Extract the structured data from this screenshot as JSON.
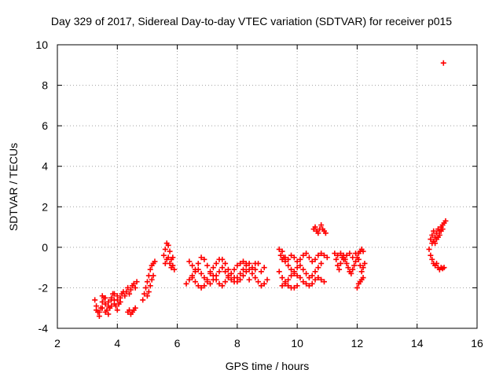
{
  "chart_data": {
    "type": "scatter",
    "title": "Day 329 of 2017, Sidereal Day-to-day VTEC variation (SDTVAR) for receiver p015",
    "xlabel": "GPS time / hours",
    "ylabel": "SDTVAR / TECUs",
    "xlim": [
      2,
      16
    ],
    "ylim": [
      -4,
      10
    ],
    "xticks": [
      2,
      4,
      6,
      8,
      10,
      12,
      14,
      16
    ],
    "yticks": [
      -4,
      -2,
      0,
      2,
      4,
      6,
      8,
      10
    ],
    "grid": true,
    "marker": "+",
    "color": "#ff0000",
    "series": [
      {
        "points": [
          [
            3.25,
            -2.6
          ],
          [
            3.3,
            -2.9
          ],
          [
            3.35,
            -3.2
          ],
          [
            3.4,
            -3.4
          ],
          [
            3.45,
            -3.0
          ],
          [
            3.5,
            -2.7
          ],
          [
            3.55,
            -2.5
          ],
          [
            3.6,
            -2.8
          ],
          [
            3.65,
            -3.1
          ],
          [
            3.7,
            -3.3
          ],
          [
            3.75,
            -3.0
          ],
          [
            3.8,
            -2.6
          ],
          [
            3.85,
            -2.3
          ],
          [
            3.9,
            -2.6
          ],
          [
            3.95,
            -2.9
          ],
          [
            4.0,
            -3.1
          ],
          [
            4.05,
            -2.8
          ],
          [
            4.1,
            -2.5
          ],
          [
            4.15,
            -2.3
          ],
          [
            4.2,
            -2.2
          ],
          [
            4.25,
            -2.4
          ],
          [
            4.3,
            -2.2
          ],
          [
            4.35,
            -2.0
          ],
          [
            4.4,
            -2.3
          ],
          [
            4.45,
            -2.1
          ],
          [
            4.5,
            -1.9
          ],
          [
            4.55,
            -1.8
          ],
          [
            4.6,
            -2.0
          ],
          [
            4.65,
            -1.7
          ],
          [
            3.3,
            -3.1
          ],
          [
            3.4,
            -3.2
          ],
          [
            3.5,
            -3.0
          ],
          [
            3.6,
            -3.2
          ],
          [
            3.7,
            -2.9
          ],
          [
            3.8,
            -2.5
          ],
          [
            3.9,
            -2.3
          ],
          [
            4.0,
            -2.6
          ],
          [
            3.5,
            -2.4
          ],
          [
            3.6,
            -2.5
          ],
          [
            3.7,
            -2.7
          ],
          [
            3.8,
            -2.9
          ],
          [
            3.9,
            -2.8
          ],
          [
            4.0,
            -2.4
          ],
          [
            4.1,
            -2.7
          ],
          [
            4.35,
            -3.2
          ],
          [
            4.4,
            -3.1
          ],
          [
            4.45,
            -3.3
          ],
          [
            4.5,
            -3.2
          ],
          [
            4.55,
            -3.1
          ],
          [
            4.6,
            -3.0
          ]
        ]
      },
      {
        "points": [
          [
            4.85,
            -2.6
          ],
          [
            4.9,
            -2.3
          ],
          [
            4.95,
            -2.0
          ],
          [
            5.0,
            -2.4
          ],
          [
            5.05,
            -2.2
          ],
          [
            5.1,
            -1.9
          ],
          [
            5.15,
            -1.6
          ],
          [
            5.2,
            -1.4
          ],
          [
            5.0,
            -1.7
          ],
          [
            5.05,
            -1.4
          ],
          [
            5.1,
            -1.1
          ],
          [
            5.15,
            -0.9
          ],
          [
            5.2,
            -0.8
          ],
          [
            5.25,
            -0.7
          ],
          [
            5.55,
            -0.4
          ],
          [
            5.6,
            -0.1
          ],
          [
            5.65,
            0.2
          ],
          [
            5.7,
            0.1
          ],
          [
            5.75,
            -0.2
          ],
          [
            5.8,
            -0.6
          ],
          [
            5.85,
            -0.9
          ],
          [
            5.9,
            -1.1
          ],
          [
            5.6,
            -0.8
          ],
          [
            5.65,
            -0.6
          ],
          [
            5.7,
            -0.5
          ],
          [
            5.75,
            -0.8
          ],
          [
            5.8,
            -1.0
          ],
          [
            5.85,
            -0.5
          ]
        ]
      },
      {
        "points": [
          [
            6.3,
            -1.8
          ],
          [
            6.4,
            -1.6
          ],
          [
            6.5,
            -1.4
          ],
          [
            6.6,
            -1.2
          ],
          [
            6.7,
            -1.1
          ],
          [
            6.8,
            -1.3
          ],
          [
            6.9,
            -1.5
          ],
          [
            7.0,
            -1.7
          ],
          [
            7.1,
            -1.8
          ],
          [
            7.2,
            -1.6
          ],
          [
            7.3,
            -1.4
          ],
          [
            7.4,
            -1.2
          ],
          [
            7.5,
            -1.0
          ],
          [
            7.6,
            -1.2
          ],
          [
            7.7,
            -1.4
          ],
          [
            7.8,
            -1.6
          ],
          [
            7.9,
            -1.7
          ],
          [
            8.0,
            -1.5
          ],
          [
            8.1,
            -1.3
          ],
          [
            8.2,
            -1.1
          ],
          [
            8.3,
            -0.9
          ],
          [
            8.4,
            -0.8
          ],
          [
            6.4,
            -0.7
          ],
          [
            6.5,
            -0.9
          ],
          [
            6.6,
            -1.1
          ],
          [
            6.7,
            -0.8
          ],
          [
            6.8,
            -0.5
          ],
          [
            6.9,
            -0.6
          ],
          [
            7.0,
            -0.9
          ],
          [
            7.1,
            -1.2
          ],
          [
            7.2,
            -1.4
          ],
          [
            7.3,
            -1.6
          ],
          [
            7.4,
            -1.8
          ],
          [
            7.5,
            -1.9
          ],
          [
            7.6,
            -1.7
          ],
          [
            7.7,
            -1.5
          ],
          [
            7.8,
            -1.3
          ],
          [
            7.9,
            -1.1
          ],
          [
            8.0,
            -0.9
          ],
          [
            8.1,
            -0.8
          ],
          [
            8.2,
            -0.7
          ],
          [
            8.3,
            -0.8
          ],
          [
            6.5,
            -1.5
          ],
          [
            6.6,
            -1.7
          ],
          [
            6.7,
            -1.9
          ],
          [
            6.8,
            -2.0
          ],
          [
            6.9,
            -1.9
          ],
          [
            7.0,
            -1.6
          ],
          [
            7.1,
            -1.3
          ],
          [
            7.2,
            -1.0
          ],
          [
            7.3,
            -0.8
          ],
          [
            7.4,
            -0.6
          ],
          [
            7.5,
            -0.6
          ],
          [
            7.6,
            -0.8
          ],
          [
            7.7,
            -1.1
          ],
          [
            7.8,
            -1.3
          ],
          [
            7.9,
            -1.5
          ],
          [
            8.0,
            -1.7
          ],
          [
            8.1,
            -1.6
          ],
          [
            8.2,
            -1.4
          ],
          [
            8.3,
            -1.2
          ],
          [
            8.4,
            -1.1
          ],
          [
            8.5,
            -1.0
          ],
          [
            8.6,
            -0.8
          ],
          [
            8.7,
            -0.8
          ],
          [
            8.5,
            -1.3
          ],
          [
            8.6,
            -1.5
          ],
          [
            8.7,
            -1.7
          ],
          [
            8.8,
            -1.9
          ],
          [
            8.9,
            -1.8
          ],
          [
            9.0,
            -1.6
          ],
          [
            8.4,
            -1.6
          ],
          [
            8.6,
            -1.1
          ],
          [
            8.8,
            -1.2
          ],
          [
            8.9,
            -1.0
          ]
        ]
      },
      {
        "points": [
          [
            9.4,
            -0.1
          ],
          [
            9.45,
            -0.4
          ],
          [
            9.5,
            -0.2
          ],
          [
            9.55,
            -0.5
          ],
          [
            9.6,
            -0.7
          ],
          [
            9.7,
            -0.9
          ],
          [
            9.8,
            -1.1
          ],
          [
            9.9,
            -1.3
          ],
          [
            10.0,
            -1.4
          ],
          [
            10.1,
            -1.5
          ],
          [
            10.2,
            -1.7
          ],
          [
            10.3,
            -1.8
          ],
          [
            10.4,
            -1.9
          ],
          [
            10.5,
            -1.8
          ],
          [
            10.6,
            -1.6
          ],
          [
            10.7,
            -1.5
          ],
          [
            10.8,
            -1.6
          ],
          [
            10.9,
            -1.7
          ],
          [
            9.5,
            -0.6
          ],
          [
            9.6,
            -0.5
          ],
          [
            9.7,
            -0.6
          ],
          [
            9.8,
            -0.4
          ],
          [
            9.9,
            -0.5
          ],
          [
            10.0,
            -0.7
          ],
          [
            10.1,
            -0.6
          ],
          [
            10.2,
            -0.4
          ],
          [
            10.3,
            -0.3
          ],
          [
            10.4,
            -0.5
          ],
          [
            10.5,
            -0.7
          ],
          [
            10.6,
            -0.6
          ],
          [
            10.7,
            -0.4
          ],
          [
            10.8,
            -0.3
          ],
          [
            10.9,
            -0.4
          ],
          [
            11.0,
            -0.5
          ],
          [
            9.4,
            -1.2
          ],
          [
            9.5,
            -1.5
          ],
          [
            9.6,
            -1.7
          ],
          [
            9.7,
            -1.6
          ],
          [
            9.8,
            -1.4
          ],
          [
            9.9,
            -1.2
          ],
          [
            10.0,
            -1.0
          ],
          [
            10.1,
            -0.9
          ],
          [
            10.2,
            -1.1
          ],
          [
            10.3,
            -1.3
          ],
          [
            10.4,
            -1.5
          ],
          [
            10.5,
            -1.4
          ],
          [
            10.6,
            -1.2
          ],
          [
            10.7,
            -1.0
          ],
          [
            10.8,
            -0.8
          ],
          [
            9.5,
            -1.9
          ],
          [
            9.6,
            -1.8
          ],
          [
            9.7,
            -1.9
          ],
          [
            9.8,
            -2.0
          ],
          [
            9.9,
            -2.0
          ],
          [
            10.0,
            -1.9
          ],
          [
            10.55,
            0.9
          ],
          [
            10.6,
            1.0
          ],
          [
            10.65,
            0.8
          ],
          [
            10.7,
            0.7
          ],
          [
            10.75,
            0.9
          ],
          [
            10.8,
            1.1
          ],
          [
            10.85,
            0.9
          ],
          [
            10.9,
            0.8
          ],
          [
            10.95,
            0.7
          ]
        ]
      },
      {
        "points": [
          [
            11.25,
            -0.3
          ],
          [
            11.3,
            -0.6
          ],
          [
            11.35,
            -0.9
          ],
          [
            11.4,
            -1.1
          ],
          [
            11.45,
            -0.8
          ],
          [
            11.5,
            -0.5
          ],
          [
            11.55,
            -0.4
          ],
          [
            11.6,
            -0.6
          ],
          [
            11.65,
            -0.8
          ],
          [
            11.7,
            -1.0
          ],
          [
            11.75,
            -1.2
          ],
          [
            11.8,
            -1.3
          ],
          [
            11.85,
            -1.1
          ],
          [
            11.9,
            -0.9
          ],
          [
            11.95,
            -0.7
          ],
          [
            12.0,
            -0.5
          ],
          [
            12.05,
            -0.3
          ],
          [
            12.1,
            -0.2
          ],
          [
            12.15,
            -0.1
          ],
          [
            12.2,
            -0.2
          ],
          [
            11.35,
            -0.4
          ],
          [
            11.45,
            -0.3
          ],
          [
            11.55,
            -0.6
          ],
          [
            11.65,
            -0.4
          ],
          [
            11.75,
            -0.3
          ],
          [
            11.85,
            -0.5
          ],
          [
            11.95,
            -0.3
          ],
          [
            12.05,
            -0.6
          ],
          [
            12.1,
            -0.9
          ],
          [
            12.15,
            -1.2
          ],
          [
            12.2,
            -1.0
          ],
          [
            12.25,
            -0.8
          ],
          [
            12.0,
            -2.0
          ],
          [
            12.05,
            -1.8
          ],
          [
            12.1,
            -1.7
          ],
          [
            12.15,
            -1.6
          ],
          [
            12.2,
            -1.5
          ]
        ]
      },
      {
        "points": [
          [
            14.4,
            -0.1
          ],
          [
            14.45,
            -0.4
          ],
          [
            14.5,
            -0.6
          ],
          [
            14.55,
            -0.8
          ],
          [
            14.6,
            -0.9
          ],
          [
            14.65,
            -0.8
          ],
          [
            14.7,
            -1.0
          ],
          [
            14.75,
            -1.1
          ],
          [
            14.8,
            -1.0
          ],
          [
            14.85,
            -1.05
          ],
          [
            14.9,
            -1.0
          ],
          [
            14.45,
            0.4
          ],
          [
            14.5,
            0.6
          ],
          [
            14.55,
            0.8
          ],
          [
            14.6,
            0.5
          ],
          [
            14.65,
            0.7
          ],
          [
            14.7,
            0.9
          ],
          [
            14.75,
            0.8
          ],
          [
            14.8,
            1.0
          ],
          [
            14.85,
            1.1
          ],
          [
            14.9,
            1.2
          ],
          [
            14.95,
            1.3
          ],
          [
            14.5,
            0.2
          ],
          [
            14.55,
            0.3
          ],
          [
            14.6,
            0.2
          ],
          [
            14.65,
            0.4
          ],
          [
            14.7,
            0.5
          ],
          [
            14.75,
            0.6
          ],
          [
            14.8,
            0.8
          ],
          [
            14.85,
            0.9
          ],
          [
            14.88,
            9.1
          ]
        ]
      }
    ]
  }
}
